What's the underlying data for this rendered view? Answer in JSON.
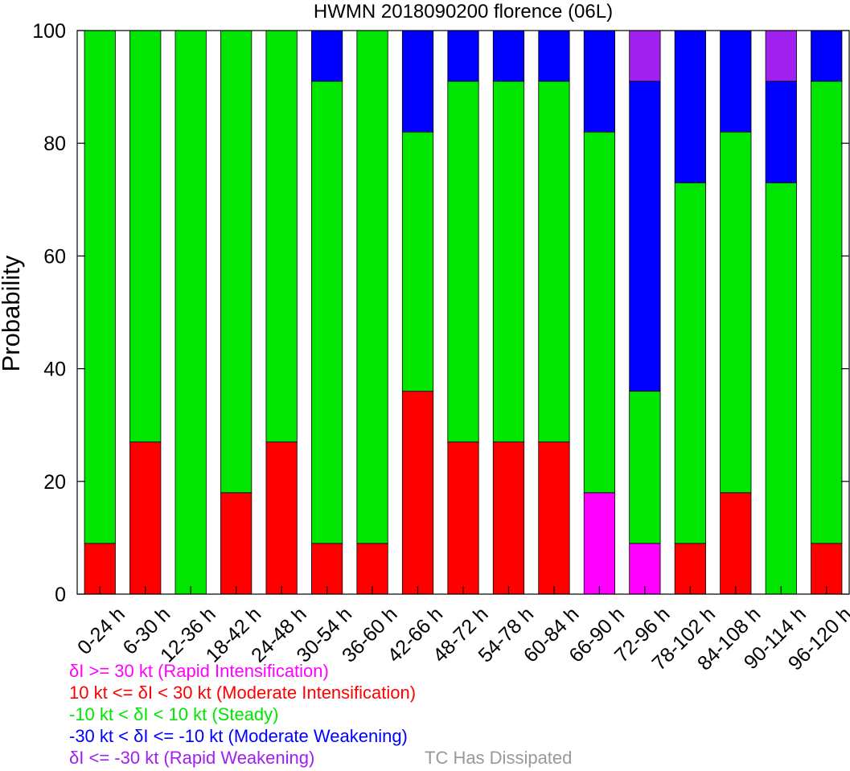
{
  "chart_data": {
    "type": "bar",
    "stacked": true,
    "title": "HWMN 2018090200 florence (06L)",
    "xlabel": "",
    "ylabel": "Probability",
    "ylim": [
      0,
      100
    ],
    "yticks": [
      0,
      20,
      40,
      60,
      80,
      100
    ],
    "grid": false,
    "categories": [
      "0-24 h",
      "6-30 h",
      "12-36 h",
      "18-42 h",
      "24-48 h",
      "30-54 h",
      "36-60 h",
      "42-66 h",
      "48-72 h",
      "54-78 h",
      "60-84 h",
      "66-90 h",
      "72-96 h",
      "78-102 h",
      "84-108 h",
      "90-114 h",
      "96-120 h"
    ],
    "series": [
      {
        "name": "δI >= 30 kt (Rapid Intensification)",
        "color": "#ff00ff",
        "values": [
          0,
          0,
          0,
          0,
          0,
          0,
          0,
          0,
          0,
          0,
          0,
          18,
          9,
          0,
          0,
          0,
          0
        ]
      },
      {
        "name": "10 kt <= δI < 30 kt (Moderate Intensification)",
        "color": "#ff0000",
        "values": [
          9,
          27,
          0,
          18,
          27,
          9,
          9,
          36,
          27,
          27,
          27,
          0,
          0,
          9,
          18,
          0,
          9
        ]
      },
      {
        "name": "-10 kt < δI < 10 kt (Steady)",
        "color": "#00e600",
        "values": [
          91,
          73,
          100,
          82,
          73,
          82,
          91,
          46,
          64,
          64,
          64,
          64,
          27,
          64,
          64,
          73,
          82
        ]
      },
      {
        "name": "-30 kt < δI <= -10 kt (Moderate Weakening)",
        "color": "#0000ff",
        "values": [
          0,
          0,
          0,
          0,
          0,
          9,
          0,
          18,
          9,
          9,
          9,
          18,
          55,
          27,
          18,
          18,
          9
        ]
      },
      {
        "name": "δI <= -30 kt (Rapid Weakening)",
        "color": "#a020f0",
        "values": [
          0,
          0,
          0,
          0,
          0,
          0,
          0,
          0,
          0,
          0,
          0,
          0,
          9,
          0,
          0,
          9,
          0
        ]
      },
      {
        "name": "TC Has Dissipated",
        "color": "#999999",
        "values": [
          0,
          0,
          0,
          0,
          0,
          0,
          0,
          0,
          0,
          0,
          0,
          0,
          0,
          0,
          0,
          0,
          0
        ]
      }
    ],
    "legend_position": "bottom"
  }
}
